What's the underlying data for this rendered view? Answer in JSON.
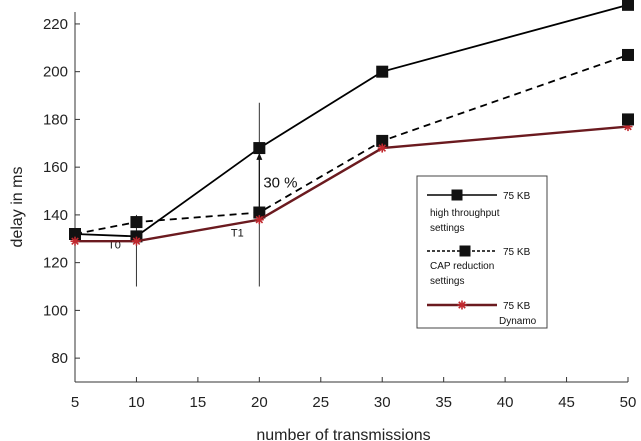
{
  "chart_data": {
    "type": "line",
    "xlabel": "number of transmissions",
    "ylabel": "delay in ms",
    "xlim": [
      5,
      50
    ],
    "ylim": [
      70,
      225
    ],
    "xticks": [
      5,
      10,
      15,
      20,
      25,
      30,
      35,
      40,
      45,
      50
    ],
    "yticks": [
      80,
      100,
      120,
      140,
      160,
      180,
      200,
      220
    ],
    "grid": false,
    "legend_position": "right",
    "series": [
      {
        "name": "high throughput settings",
        "legend_size": "75 KB",
        "legend_lines": [
          "high throughput",
          "settings"
        ],
        "color": "#000000",
        "line_style": "solid",
        "marker": "square",
        "x": [
          5,
          10,
          20,
          30,
          50
        ],
        "y": [
          132,
          131,
          168,
          200,
          228
        ]
      },
      {
        "name": "CAP reduction settings",
        "legend_size": "75 KB",
        "legend_lines": [
          "CAP reduction",
          "settings"
        ],
        "color": "#000000",
        "line_style": "dashed",
        "marker": "square",
        "x": [
          5,
          10,
          20,
          30,
          50
        ],
        "y": [
          132,
          137,
          141,
          171,
          207
        ]
      },
      {
        "name": "Dynamo",
        "legend_size": "75 KB",
        "legend_lines": [
          "Dynamo"
        ],
        "color": "#6b1a1f",
        "line_style": "solid",
        "marker": "star",
        "x": [
          5,
          10,
          20,
          30,
          50
        ],
        "y": [
          129,
          129,
          138,
          168,
          177
        ]
      }
    ],
    "extra_markers": [
      {
        "x": 50,
        "y": 180,
        "marker": "square"
      }
    ],
    "annotations": {
      "markers": [
        {
          "label": "T0",
          "x": 10,
          "y_top": 140,
          "y_bottom": 110,
          "label_y": 126
        },
        {
          "label": "T1",
          "x": 20,
          "y_top": 187,
          "y_bottom": 110,
          "label_y": 131
        }
      ],
      "percent": {
        "text": "30 %",
        "x": 20,
        "y": 154,
        "arrow_from": 141,
        "arrow_to": 166
      }
    }
  }
}
